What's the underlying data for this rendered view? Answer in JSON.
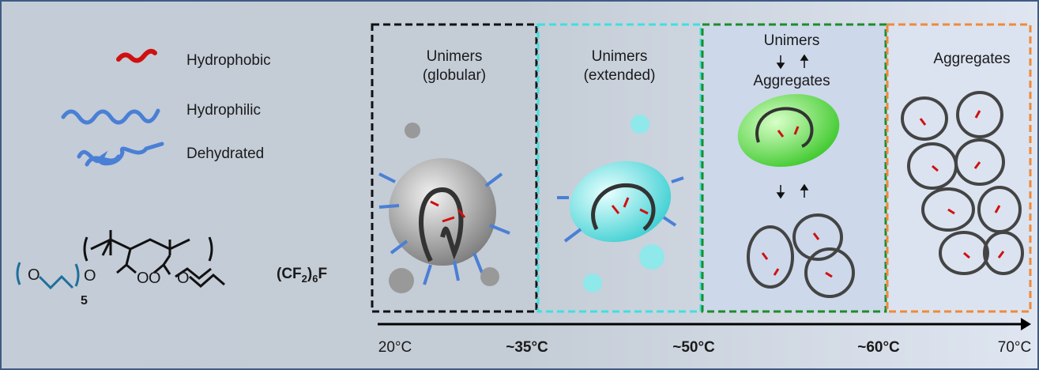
{
  "legend": [
    {
      "label": "Hydrophobic"
    },
    {
      "label": "Hydrophilic"
    },
    {
      "label": "Dehydrated"
    }
  ],
  "structure": {
    "oxygen": "O",
    "repeat": "5",
    "formula": [
      "(CF",
      "2",
      ")",
      "6",
      "F"
    ]
  },
  "panels": [
    {
      "lines": [
        "Unimers",
        "(globular)"
      ]
    },
    {
      "lines": [
        "Unimers",
        "(extended)"
      ]
    },
    {
      "lines": [
        "Unimers",
        "Aggregates"
      ]
    },
    {
      "lines": [
        "Aggregates"
      ]
    }
  ],
  "temperatures": [
    "20°C",
    "~35°C",
    "~50°C",
    "~60°C",
    "70°C"
  ]
}
